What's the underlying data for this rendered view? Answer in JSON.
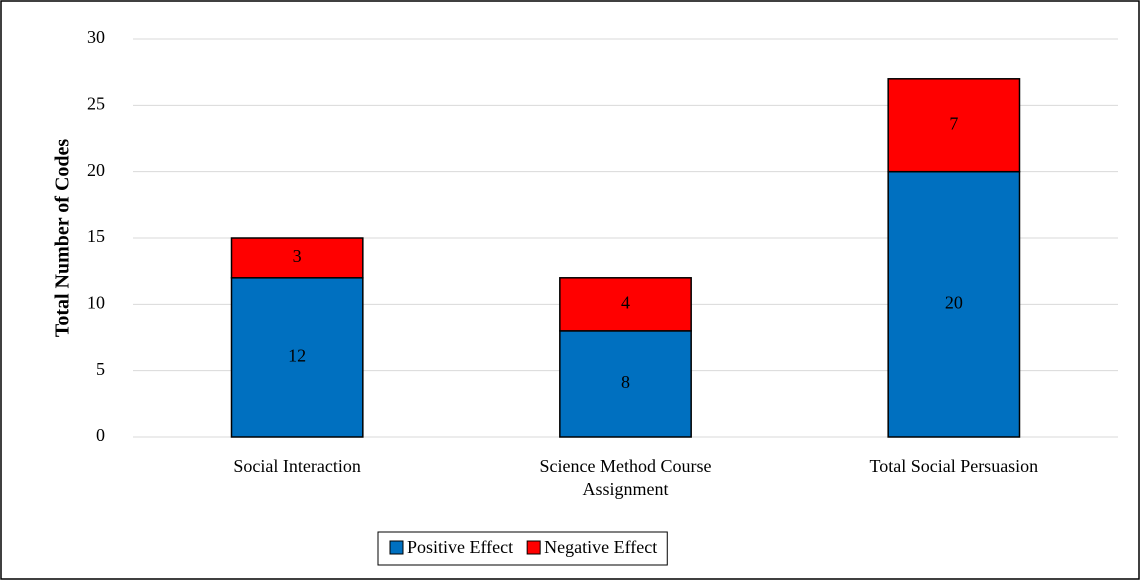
{
  "chart_data": {
    "type": "stacked_bar",
    "categories": [
      "Social Interaction",
      "Science Method Course Assignment",
      "Total Social Persuasion"
    ],
    "series": [
      {
        "name": "Positive Effect",
        "color": "#0070c0",
        "values": [
          12,
          8,
          20
        ]
      },
      {
        "name": "Negative Effect",
        "color": "#ff0000",
        "values": [
          3,
          4,
          7
        ]
      }
    ],
    "y_label": "Total Number of Codes",
    "ylim": [
      0,
      30
    ],
    "yticks": [
      0,
      5,
      10,
      15,
      20,
      25,
      30
    ],
    "grid": true,
    "legend": "bottom"
  }
}
